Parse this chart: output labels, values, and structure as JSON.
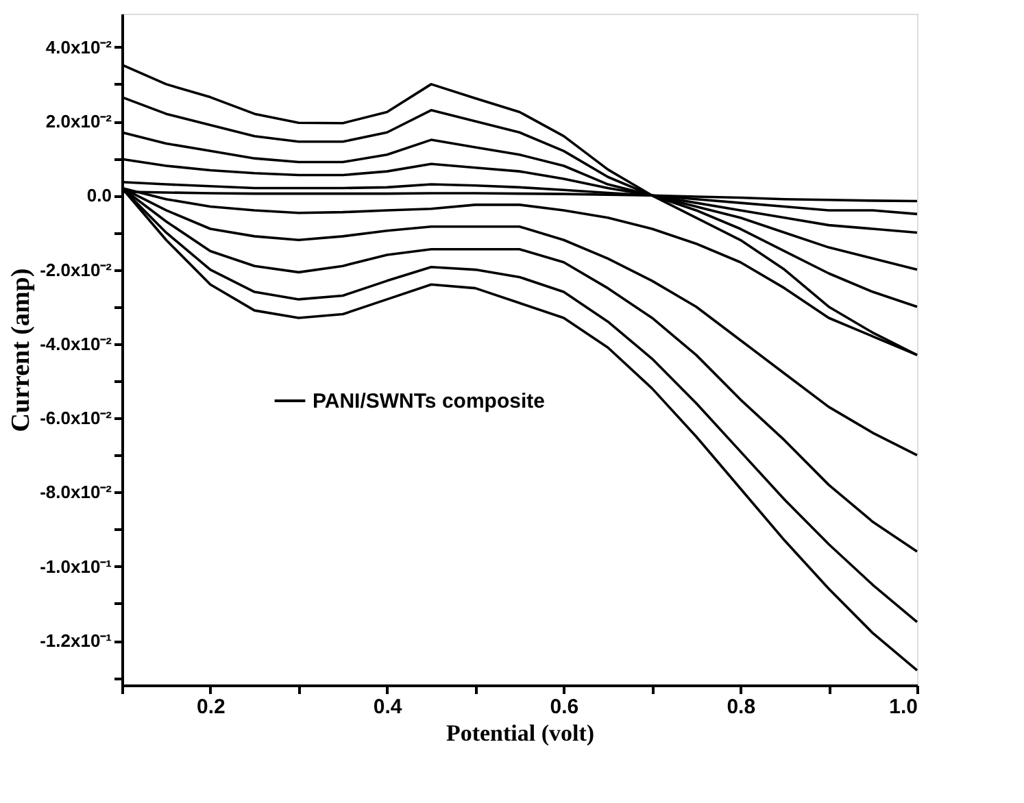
{
  "chart_data": {
    "type": "line",
    "xlabel": "Potential (volt)",
    "ylabel": "Current (amp)",
    "x": [
      0.1,
      0.15,
      0.2,
      0.25,
      0.3,
      0.35,
      0.4,
      0.45,
      0.5,
      0.55,
      0.6,
      0.65,
      0.7,
      0.75,
      0.8,
      0.85,
      0.9,
      0.95,
      1.0
    ],
    "series": [
      {
        "name": "PANI/SWNTs composite",
        "color": "#000000",
        "values": [
          0.0352,
          0.03,
          0.0265,
          0.022,
          0.0196,
          0.0195,
          0.0225,
          0.03,
          0.0262,
          0.0225,
          0.016,
          0.007,
          0.0,
          -0.006,
          -0.012,
          -0.02,
          -0.03,
          -0.037,
          -0.043
        ]
      },
      {
        "color": "#000000",
        "values": [
          0.0265,
          0.022,
          0.019,
          0.016,
          0.0145,
          0.0145,
          0.017,
          0.023,
          0.02,
          0.017,
          0.012,
          0.005,
          0.0,
          -0.004,
          -0.009,
          -0.015,
          -0.021,
          -0.026,
          -0.03
        ]
      },
      {
        "color": "#000000",
        "values": [
          0.017,
          0.014,
          0.012,
          0.01,
          0.009,
          0.009,
          0.011,
          0.015,
          0.013,
          0.011,
          0.008,
          0.003,
          0.0,
          -0.003,
          -0.006,
          -0.01,
          -0.014,
          -0.017,
          -0.02
        ]
      },
      {
        "color": "#000000",
        "values": [
          0.0098,
          0.008,
          0.0068,
          0.006,
          0.0055,
          0.0055,
          0.0065,
          0.0085,
          0.0075,
          0.0065,
          0.0045,
          0.002,
          0.0,
          -0.002,
          -0.004,
          -0.006,
          -0.008,
          -0.009,
          -0.01
        ]
      },
      {
        "color": "#000000",
        "values": [
          0.0036,
          0.003,
          0.0025,
          0.002,
          0.002,
          0.002,
          0.0022,
          0.003,
          0.0027,
          0.0022,
          0.0015,
          0.0007,
          0.0,
          -0.001,
          -0.002,
          -0.003,
          -0.004,
          -0.004,
          -0.005
        ]
      },
      {
        "color": "#000000",
        "values": [
          0.001,
          0.0008,
          0.0006,
          0.0005,
          0.0005,
          0.0005,
          0.0005,
          0.0006,
          0.0006,
          0.0005,
          0.0004,
          0.0002,
          0.0,
          -0.0003,
          -0.0006,
          -0.001,
          -0.0012,
          -0.0014,
          -0.0015
        ]
      },
      {
        "color": "#000000",
        "values": [
          0.002,
          -0.001,
          -0.003,
          -0.004,
          -0.0047,
          -0.0045,
          -0.004,
          -0.0036,
          -0.0025,
          -0.0025,
          -0.004,
          -0.006,
          -0.009,
          -0.013,
          -0.018,
          -0.025,
          -0.033,
          -0.038,
          -0.043
        ]
      },
      {
        "color": "#000000",
        "values": [
          0.002,
          -0.004,
          -0.009,
          -0.011,
          -0.012,
          -0.011,
          -0.0095,
          -0.0084,
          -0.0084,
          -0.0084,
          -0.012,
          -0.017,
          -0.023,
          -0.03,
          -0.039,
          -0.048,
          -0.057,
          -0.064,
          -0.07
        ]
      },
      {
        "color": "#000000",
        "values": [
          0.002,
          -0.007,
          -0.015,
          -0.019,
          -0.0207,
          -0.019,
          -0.016,
          -0.0145,
          -0.0145,
          -0.0145,
          -0.018,
          -0.025,
          -0.033,
          -0.043,
          -0.055,
          -0.066,
          -0.078,
          -0.088,
          -0.096
        ]
      },
      {
        "color": "#000000",
        "values": [
          0.002,
          -0.01,
          -0.02,
          -0.026,
          -0.028,
          -0.027,
          -0.023,
          -0.0193,
          -0.02,
          -0.022,
          -0.026,
          -0.034,
          -0.044,
          -0.056,
          -0.069,
          -0.082,
          -0.094,
          -0.105,
          -0.115
        ]
      },
      {
        "color": "#000000",
        "values": [
          0.002,
          -0.012,
          -0.024,
          -0.031,
          -0.033,
          -0.032,
          -0.028,
          -0.024,
          -0.025,
          -0.029,
          -0.033,
          -0.041,
          -0.052,
          -0.065,
          -0.079,
          -0.093,
          -0.106,
          -0.118,
          -0.128
        ]
      }
    ],
    "xlim": [
      0.1,
      1.0
    ],
    "xticks": [
      {
        "value": 0.1,
        "label": null
      },
      0.2,
      {
        "value": 0.3,
        "label": null
      },
      0.4,
      {
        "value": 0.5,
        "label": null
      },
      0.6,
      {
        "value": 0.7,
        "label": null
      },
      0.8,
      {
        "value": 0.9,
        "label": null
      },
      {
        "value": 1.0,
        "label": "1.0"
      }
    ],
    "ylim": [
      -0.132,
      0.049
    ],
    "yticks": [
      {
        "value": 0.04,
        "label": "4.0x10⁻²"
      },
      {
        "value": 0.03,
        "label": null
      },
      {
        "value": 0.02,
        "label": "2.0x10⁻²"
      },
      {
        "value": 0.01,
        "label": null
      },
      {
        "value": 0.0,
        "label": "0.0"
      },
      {
        "value": -0.01,
        "label": null
      },
      {
        "value": -0.02,
        "label": "-2.0x10⁻²"
      },
      {
        "value": -0.03,
        "label": null
      },
      {
        "value": -0.04,
        "label": "-4.0x10⁻²"
      },
      {
        "value": -0.05,
        "label": null
      },
      {
        "value": -0.06,
        "label": "-6.0x10⁻²"
      },
      {
        "value": -0.07,
        "label": null
      },
      {
        "value": -0.08,
        "label": "-8.0x10⁻²"
      },
      {
        "value": -0.09,
        "label": null
      },
      {
        "value": -0.1,
        "label": "-1.0x10⁻¹"
      },
      {
        "value": -0.11,
        "label": null
      },
      {
        "value": -0.12,
        "label": "-1.2x10⁻¹"
      },
      {
        "value": -0.13,
        "label": null
      }
    ],
    "grid": false,
    "legend": "left",
    "line_style": "solid",
    "marker": "none"
  }
}
